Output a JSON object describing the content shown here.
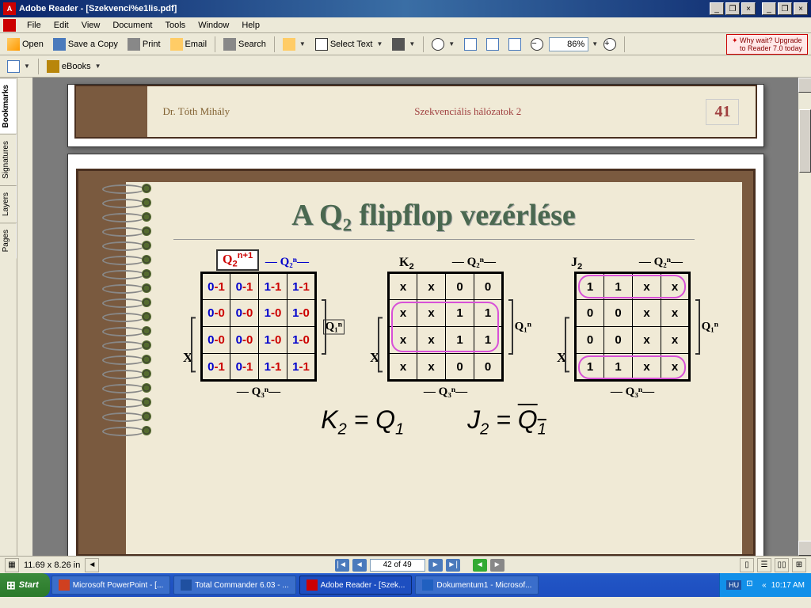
{
  "window": {
    "title": "Adobe Reader - [Szekvenci%e1lis.pdf]"
  },
  "menu": {
    "items": [
      "File",
      "Edit",
      "View",
      "Document",
      "Tools",
      "Window",
      "Help"
    ]
  },
  "toolbar": {
    "open": "Open",
    "save": "Save a Copy",
    "print": "Print",
    "email": "Email",
    "search": "Search",
    "select": "Select Text",
    "zoom": "86%",
    "upgrade_line1": "Why wait? Upgrade",
    "upgrade_line2": "to Reader 7.0 today"
  },
  "toolbar2": {
    "ebooks": "eBooks"
  },
  "sidetabs": [
    "Bookmarks",
    "Signatures",
    "Layers",
    "Pages"
  ],
  "prev_page": {
    "author": "Dr. Tóth Mihály",
    "title": "Szekvenciális hálózatok 2",
    "num": "41"
  },
  "slide": {
    "title": "A Q₂ flipflop vezérlése",
    "map1_label": "Q₂ⁿ⁺¹",
    "map2_label": "K₂",
    "map3_label": "J₂",
    "q2n": " Q₂ⁿ",
    "q1n": "Q₁ⁿ",
    "q3n": " Q₃ⁿ",
    "x": "X",
    "map1": {
      "rows": [
        [
          [
            "0",
            "-1"
          ],
          [
            "0",
            "-1"
          ],
          [
            "1",
            "-1"
          ],
          [
            "1",
            "-1"
          ]
        ],
        [
          [
            "0",
            "-0"
          ],
          [
            "0",
            "-0"
          ],
          [
            "1",
            "-0"
          ],
          [
            "1",
            "-0"
          ]
        ],
        [
          [
            "0",
            "-0"
          ],
          [
            "0",
            "-0"
          ],
          [
            "1",
            "-0"
          ],
          [
            "1",
            "-0"
          ]
        ],
        [
          [
            "0",
            "-1"
          ],
          [
            "0",
            "-1"
          ],
          [
            "1",
            "-1"
          ],
          [
            "1",
            "-1"
          ]
        ]
      ]
    },
    "map2": {
      "rows": [
        [
          "x",
          "x",
          "0",
          "0"
        ],
        [
          "x",
          "x",
          "1",
          "1"
        ],
        [
          "x",
          "x",
          "1",
          "1"
        ],
        [
          "x",
          "x",
          "0",
          "0"
        ]
      ]
    },
    "map3": {
      "rows": [
        [
          "1",
          "1",
          "x",
          "x"
        ],
        [
          "0",
          "0",
          "x",
          "x"
        ],
        [
          "0",
          "0",
          "x",
          "x"
        ],
        [
          "1",
          "1",
          "x",
          "x"
        ]
      ]
    },
    "eq1_lhs": "K",
    "eq1_lsub": "2",
    "eq1_rhs": "Q",
    "eq1_rsub": "1",
    "eq2_lhs": "J",
    "eq2_lsub": "2",
    "eq2_rhs": "Q",
    "eq2_rsub": "1"
  },
  "status": {
    "dims": "11.69 x 8.26 in",
    "page": "42 of 49"
  },
  "taskbar": {
    "start": "Start",
    "tasks": [
      "Microsoft PowerPoint - [...",
      "Total Commander 6.03 - ...",
      "Adobe Reader - [Szek...",
      "Dokumentum1 - Microsof..."
    ],
    "lang": "HU",
    "time": "10:17 AM"
  }
}
